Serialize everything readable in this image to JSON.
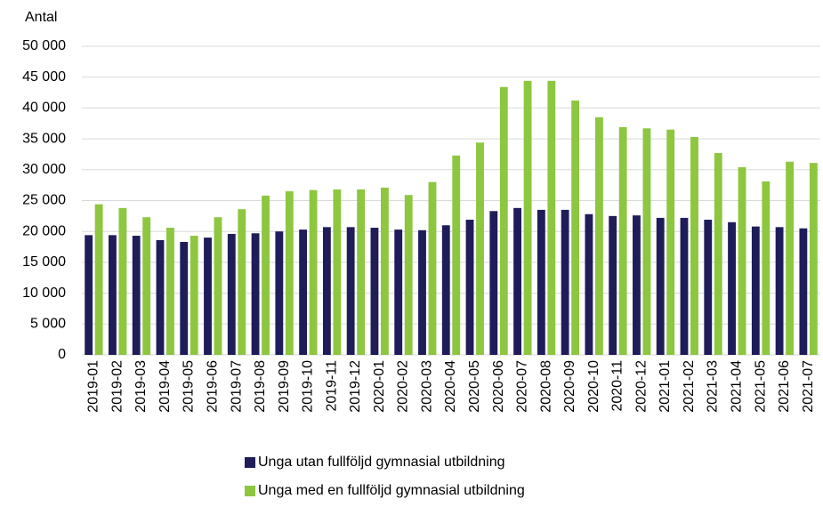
{
  "chart_data": {
    "type": "bar",
    "y_label": "Antal",
    "categories": [
      "2019-01",
      "2019-02",
      "2019-03",
      "2019-04",
      "2019-05",
      "2019-06",
      "2019-07",
      "2019-08",
      "2019-09",
      "2019-10",
      "2019-11",
      "2019-12",
      "2020-01",
      "2020-02",
      "2020-03",
      "2020-04",
      "2020-05",
      "2020-06",
      "2020-07",
      "2020-08",
      "2020-09",
      "2020-10",
      "2020-11",
      "2020-12",
      "2021-01",
      "2021-02",
      "2021-03",
      "2021-04",
      "2021-05",
      "2021-06",
      "2021-07"
    ],
    "series": [
      {
        "name": "Unga utan fullföljd gymnasial utbildning",
        "color": "#1f1c5a",
        "values": [
          19400,
          19400,
          19300,
          18600,
          18300,
          19000,
          19600,
          19700,
          20000,
          20300,
          20700,
          20700,
          20600,
          20300,
          20200,
          21000,
          21900,
          23300,
          23800,
          23500,
          23500,
          22800,
          22500,
          22600,
          22200,
          22200,
          21900,
          21500,
          20800,
          20700,
          20500
        ]
      },
      {
        "name": "Unga med en fullföljd gymnasial utbildning",
        "color": "#8dc63f",
        "values": [
          24400,
          23800,
          22300,
          20600,
          19300,
          22300,
          23600,
          25800,
          26500,
          26700,
          26800,
          26800,
          27100,
          25900,
          28000,
          32300,
          34400,
          43400,
          44400,
          44400,
          41200,
          38500,
          36900,
          36700,
          36500,
          35300,
          32700,
          30400,
          28100,
          31300,
          31100
        ]
      }
    ],
    "ylim": [
      0,
      50000
    ],
    "yticks": [
      0,
      {
        "value": 5000,
        "label": "5 000"
      },
      {
        "value": 10000,
        "label": "10 000"
      },
      {
        "value": 15000,
        "label": "15 000"
      },
      {
        "value": 20000,
        "label": "20 000"
      },
      {
        "value": 25000,
        "label": "25 000"
      },
      {
        "value": 30000,
        "label": "30 000"
      },
      {
        "value": 35000,
        "label": "35 000"
      },
      {
        "value": 40000,
        "label": "40 000"
      },
      {
        "value": 45000,
        "label": "45 000"
      },
      {
        "value": 50000,
        "label": "50 000"
      }
    ],
    "grid": true,
    "legend": "bottom"
  }
}
